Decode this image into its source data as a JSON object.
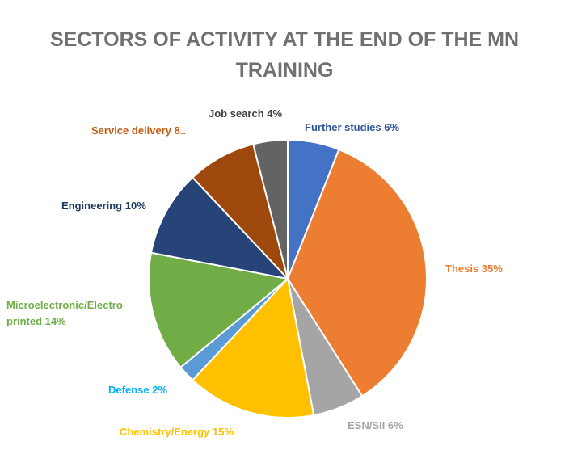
{
  "chart_data": {
    "type": "pie",
    "title": "SECTORS OF ACTIVITY AT THE END OF THE MN TRAINING",
    "slices": [
      {
        "label": "Further studies",
        "value": 6,
        "display": "Further studies 6%",
        "color": "#4472C4"
      },
      {
        "label": "Thesis",
        "value": 35,
        "display": "Thesis 35%",
        "color": "#ED7D31"
      },
      {
        "label": "ESN/SII",
        "value": 6,
        "display": "ESN/SII 6%",
        "color": "#A5A5A5"
      },
      {
        "label": "Chemistry/Energy",
        "value": 15,
        "display": "Chemistry/Energy 15%",
        "color": "#FFC000"
      },
      {
        "label": "Defense",
        "value": 2,
        "display": "Defense 2%",
        "color": "#5B9BD5"
      },
      {
        "label": "Microelectronic/Electro printed",
        "value": 14,
        "display": "Microelectronic/Electro|printed 14%",
        "color": "#70AD47"
      },
      {
        "label": "Engineering",
        "value": 10,
        "display": "Engineering 10%",
        "color": "#264478"
      },
      {
        "label": "Service delivery",
        "value": 8,
        "display": "Service delivery 8..",
        "color": "#9E480E"
      },
      {
        "label": "Job search",
        "value": 4,
        "display": "Job search 4%",
        "color": "#636363"
      }
    ]
  }
}
